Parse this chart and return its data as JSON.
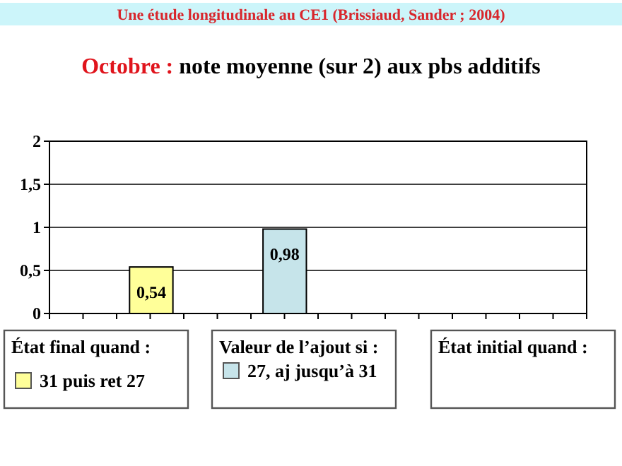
{
  "chart_data": {
    "type": "bar",
    "subtitle": "Une étude longitudinale au CE1 (Brissiaud, Sander ; 2004)",
    "title": "Octobre : note moyenne (sur 2) aux pbs additifs",
    "categories": [
      null,
      null,
      null,
      null,
      null,
      null,
      null,
      null
    ],
    "series": [
      {
        "name": "31 puis ret 27",
        "color": "#ffff99",
        "values": [
          null,
          0.54,
          null,
          null,
          null,
          null,
          null,
          null
        ],
        "value_labels": [
          null,
          "0,54",
          null,
          null,
          null,
          null,
          null,
          null
        ]
      },
      {
        "name": "27, aj  jusqu’à 31",
        "color": "#c6e4ea",
        "values": [
          null,
          null,
          null,
          0.98,
          null,
          null,
          null,
          null
        ],
        "value_labels": [
          null,
          null,
          null,
          "0,98",
          null,
          null,
          null,
          null
        ]
      }
    ],
    "annotations": [
      "État final quand :",
      "Valeur de l’ajout si :",
      "État initial quand :"
    ],
    "ylim": [
      0,
      2
    ],
    "yticks": [
      {
        "value": 0,
        "label": "0"
      },
      {
        "value": 0.5,
        "label": "0,5"
      },
      {
        "value": 1,
        "label": "1"
      },
      {
        "value": 1.5,
        "label": "1,5"
      },
      {
        "value": 2,
        "label": "2"
      }
    ],
    "grid": "y",
    "legend": "bottom"
  }
}
